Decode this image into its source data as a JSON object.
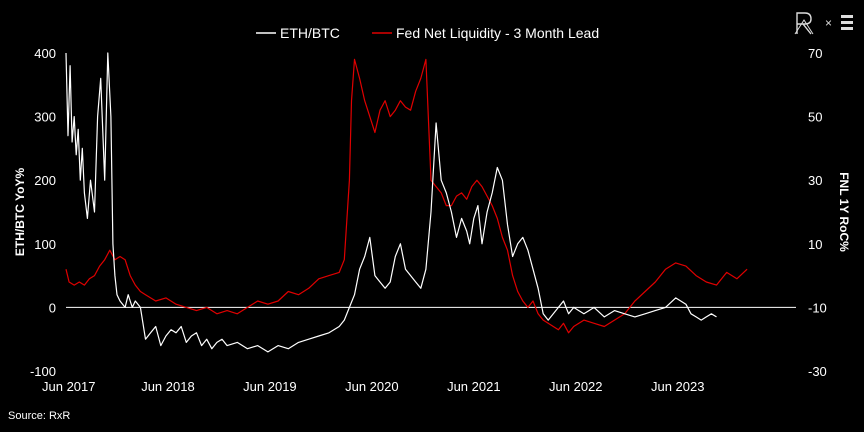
{
  "source": "Source: RxR",
  "colors": {
    "eth_btc": "#ffffff",
    "fed": "#e00000",
    "background": "#000000"
  },
  "logo": {
    "left_mark": "RxR-monogram-icon",
    "separator": "×",
    "right_mark": "bars-logo-icon"
  },
  "chart_data": {
    "type": "line",
    "legend": [
      "ETH/BTC",
      "Fed Net Liquidity - 3 Month Lead"
    ],
    "legend_position": "top-center",
    "ylabel_left": "ETH/BTC YoY%",
    "ylabel_right": "FNL 1Y RoC%",
    "left_ticks": [
      "-100",
      "0",
      "100",
      "200",
      "300",
      "400"
    ],
    "right_ticks": [
      "-30",
      "-10",
      "10",
      "30",
      "50",
      "70"
    ],
    "x_ticks": [
      "Jun 2017",
      "Jun 2018",
      "Jun 2019",
      "Jun 2020",
      "Jun 2021",
      "Jun 2022",
      "Jun 2023"
    ],
    "ylim_left": [
      -100,
      400
    ],
    "ylim_right": [
      -30,
      70
    ],
    "xlim": [
      2017.42,
      2024.58
    ],
    "zero_line": true,
    "grid": false,
    "series": [
      {
        "name": "ETH/BTC",
        "axis": "left",
        "x": [
          2017.42,
          2017.44,
          2017.46,
          2017.48,
          2017.5,
          2017.52,
          2017.54,
          2017.56,
          2017.58,
          2017.6,
          2017.63,
          2017.66,
          2017.7,
          2017.73,
          2017.76,
          2017.8,
          2017.83,
          2017.86,
          2017.88,
          2017.9,
          2017.92,
          2017.95,
          2018.0,
          2018.03,
          2018.05,
          2018.07,
          2018.1,
          2018.15,
          2018.2,
          2018.25,
          2018.3,
          2018.35,
          2018.4,
          2018.45,
          2018.5,
          2018.55,
          2018.6,
          2018.65,
          2018.7,
          2018.75,
          2018.8,
          2018.85,
          2018.9,
          2018.95,
          2019.0,
          2019.1,
          2019.2,
          2019.3,
          2019.4,
          2019.5,
          2019.6,
          2019.7,
          2019.8,
          2019.9,
          2020.0,
          2020.1,
          2020.15,
          2020.2,
          2020.25,
          2020.3,
          2020.35,
          2020.4,
          2020.45,
          2020.5,
          2020.55,
          2020.6,
          2020.65,
          2020.7,
          2020.75,
          2020.8,
          2020.85,
          2020.9,
          2020.95,
          2021.0,
          2021.05,
          2021.1,
          2021.15,
          2021.2,
          2021.25,
          2021.3,
          2021.35,
          2021.38,
          2021.42,
          2021.46,
          2021.5,
          2021.55,
          2021.6,
          2021.65,
          2021.7,
          2021.75,
          2021.8,
          2021.85,
          2021.9,
          2021.95,
          2022.0,
          2022.05,
          2022.1,
          2022.15,
          2022.2,
          2022.25,
          2022.3,
          2022.35,
          2022.4,
          2022.45,
          2022.5,
          2022.55,
          2022.6,
          2022.7,
          2022.8,
          2022.9,
          2023.0,
          2023.1,
          2023.2,
          2023.3,
          2023.4,
          2023.5,
          2023.55,
          2023.6,
          2023.65,
          2023.7,
          2023.75,
          2023.8
        ],
        "values": [
          400,
          270,
          380,
          260,
          300,
          240,
          280,
          200,
          250,
          180,
          140,
          200,
          150,
          300,
          360,
          200,
          400,
          300,
          100,
          50,
          20,
          10,
          0,
          20,
          10,
          0,
          10,
          0,
          -50,
          -40,
          -30,
          -60,
          -45,
          -35,
          -40,
          -30,
          -55,
          -45,
          -40,
          -60,
          -50,
          -65,
          -55,
          -50,
          -60,
          -55,
          -65,
          -60,
          -70,
          -60,
          -65,
          -55,
          -50,
          -45,
          -40,
          -30,
          -20,
          0,
          20,
          60,
          80,
          110,
          50,
          40,
          30,
          40,
          80,
          100,
          60,
          50,
          40,
          30,
          60,
          150,
          290,
          200,
          180,
          150,
          110,
          140,
          120,
          100,
          140,
          160,
          100,
          150,
          180,
          220,
          200,
          130,
          80,
          100,
          110,
          90,
          60,
          30,
          -10,
          -20,
          -10,
          0,
          10,
          -10,
          0,
          -5,
          -10,
          -5,
          0,
          -15,
          -5,
          -10,
          -15,
          -10,
          -5,
          0,
          15,
          5,
          -10,
          -15,
          -20,
          -15,
          -10,
          -15
        ]
      },
      {
        "name": "Fed Net Liquidity - 3 Month Lead",
        "axis": "right",
        "x": [
          2017.42,
          2017.45,
          2017.5,
          2017.55,
          2017.6,
          2017.65,
          2017.7,
          2017.75,
          2017.8,
          2017.85,
          2017.9,
          2017.95,
          2018.0,
          2018.05,
          2018.1,
          2018.15,
          2018.2,
          2018.3,
          2018.4,
          2018.5,
          2018.6,
          2018.7,
          2018.8,
          2018.9,
          2019.0,
          2019.1,
          2019.2,
          2019.3,
          2019.4,
          2019.5,
          2019.6,
          2019.7,
          2019.8,
          2019.9,
          2020.0,
          2020.1,
          2020.15,
          2020.2,
          2020.22,
          2020.25,
          2020.3,
          2020.35,
          2020.4,
          2020.45,
          2020.5,
          2020.55,
          2020.6,
          2020.65,
          2020.7,
          2020.75,
          2020.8,
          2020.85,
          2020.9,
          2020.95,
          2021.0,
          2021.05,
          2021.1,
          2021.15,
          2021.2,
          2021.25,
          2021.3,
          2021.35,
          2021.4,
          2021.45,
          2021.5,
          2021.55,
          2021.6,
          2021.65,
          2021.7,
          2021.75,
          2021.8,
          2021.85,
          2021.9,
          2021.95,
          2022.0,
          2022.05,
          2022.1,
          2022.15,
          2022.2,
          2022.25,
          2022.3,
          2022.35,
          2022.4,
          2022.5,
          2022.6,
          2022.7,
          2022.8,
          2022.9,
          2023.0,
          2023.1,
          2023.2,
          2023.3,
          2023.4,
          2023.5,
          2023.6,
          2023.7,
          2023.8,
          2023.9,
          2024.0,
          2024.1
        ],
        "values": [
          2,
          -2,
          -3,
          -2,
          -3,
          -1,
          0,
          3,
          5,
          8,
          5,
          6,
          5,
          0,
          -3,
          -5,
          -6,
          -8,
          -7,
          -9,
          -10,
          -11,
          -10,
          -12,
          -11,
          -12,
          -10,
          -8,
          -9,
          -8,
          -5,
          -6,
          -4,
          -1,
          0,
          1,
          5,
          30,
          55,
          68,
          62,
          55,
          50,
          45,
          52,
          55,
          50,
          52,
          55,
          53,
          52,
          58,
          62,
          68,
          30,
          28,
          26,
          22,
          22,
          25,
          26,
          24,
          28,
          30,
          28,
          25,
          22,
          18,
          12,
          8,
          0,
          -5,
          -8,
          -10,
          -8,
          -12,
          -14,
          -15,
          -16,
          -17,
          -15,
          -18,
          -16,
          -14,
          -15,
          -16,
          -14,
          -12,
          -8,
          -5,
          -2,
          2,
          4,
          3,
          0,
          -2,
          -3,
          1,
          -1,
          2
        ]
      }
    ]
  }
}
